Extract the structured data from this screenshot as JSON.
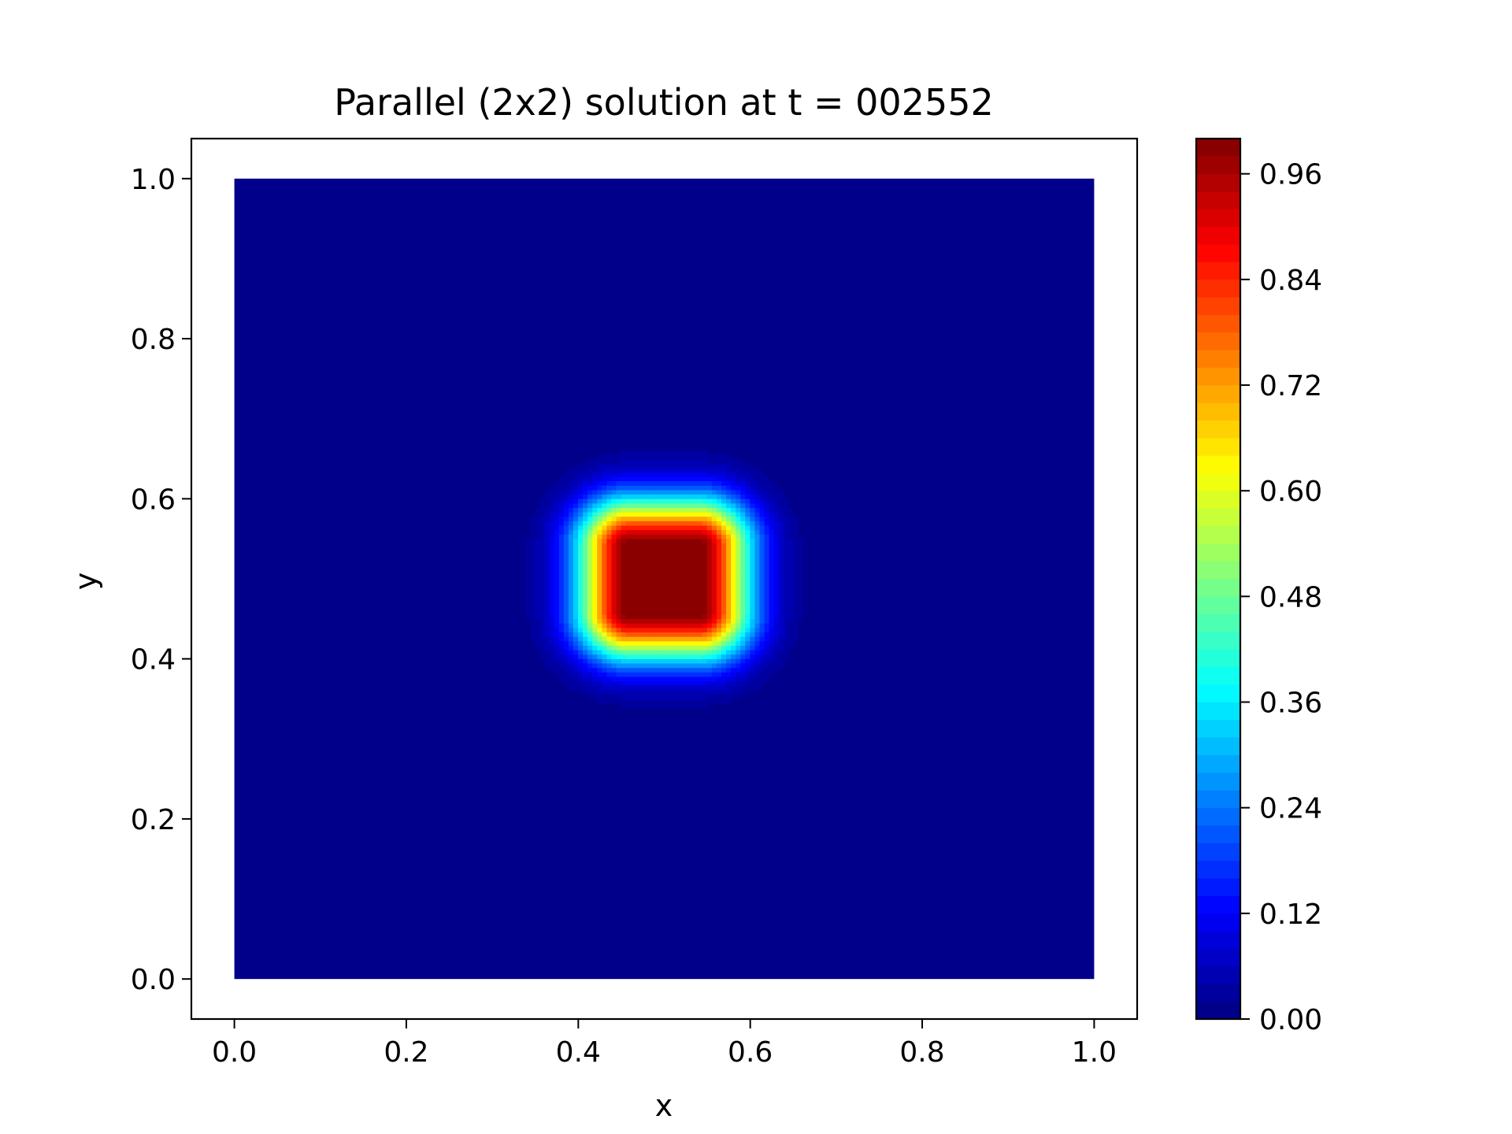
{
  "chart_data": {
    "type": "heatmap",
    "title": "Parallel (2x2) solution at t = 002552",
    "xlabel": "x",
    "ylabel": "y",
    "xlim": [
      -0.05,
      1.05
    ],
    "ylim": [
      -0.05,
      1.05
    ],
    "domain_x": [
      0.0,
      1.0
    ],
    "domain_y": [
      0.0,
      1.0
    ],
    "x_ticks": [
      "0.0",
      "0.2",
      "0.4",
      "0.6",
      "0.8",
      "1.0"
    ],
    "x_tick_values": [
      0.0,
      0.2,
      0.4,
      0.6,
      0.8,
      1.0
    ],
    "y_ticks": [
      "0.0",
      "0.2",
      "0.4",
      "0.6",
      "0.8",
      "1.0"
    ],
    "y_tick_values": [
      0.0,
      0.2,
      0.4,
      0.6,
      0.8,
      1.0
    ],
    "colormap": "jet",
    "colorbar": {
      "range": [
        0.0,
        1.0
      ],
      "levels": 50,
      "ticks": [
        "0.00",
        "0.12",
        "0.24",
        "0.36",
        "0.48",
        "0.60",
        "0.72",
        "0.84",
        "0.96"
      ],
      "tick_values": [
        0.0,
        0.12,
        0.24,
        0.36,
        0.48,
        0.6,
        0.72,
        0.84,
        0.96
      ]
    },
    "field": {
      "background_value": 0.0,
      "peak_value": 1.0,
      "peak_center": [
        0.5,
        0.5
      ],
      "core_half_width": 0.04,
      "falloff_width": 0.09
    },
    "grid": false
  }
}
